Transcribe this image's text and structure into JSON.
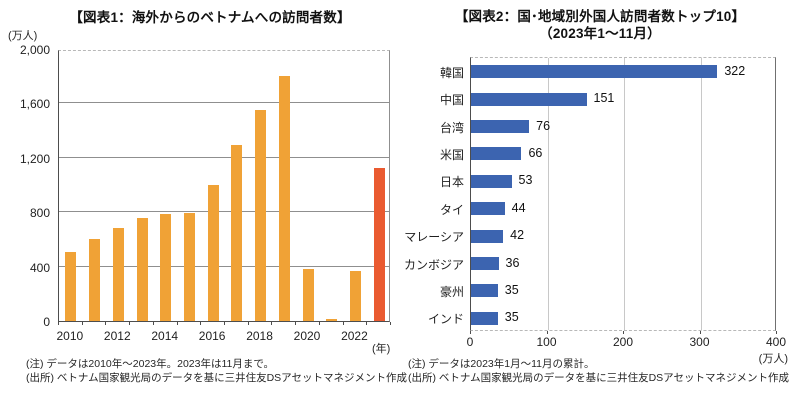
{
  "chart_data": [
    {
      "type": "bar",
      "title": "【図表1：海外からのベトナムへの訪問者数】",
      "ylabel": "(万人)",
      "xlabel": "(年)",
      "categories": [
        "2010",
        "2011",
        "2012",
        "2013",
        "2014",
        "2015",
        "2016",
        "2017",
        "2018",
        "2019",
        "2020",
        "2021",
        "2022",
        "2023"
      ],
      "values": [
        505,
        601,
        685,
        757,
        787,
        794,
        1001,
        1292,
        1550,
        1801,
        384,
        16,
        366,
        1123
      ],
      "ylim": [
        0,
        2000
      ],
      "yticks": [
        0,
        400,
        800,
        1200,
        1600,
        2000
      ],
      "xticks_shown": [
        "2010",
        "2012",
        "2014",
        "2016",
        "2018",
        "2020",
        "2022"
      ],
      "grid": "horizontal",
      "bar_color": "#f0a236",
      "highlight_index": 13,
      "highlight_color": "#ea5a30",
      "notes": [
        "(注) データは2010年～2023年。2023年は11月まで。",
        "(出所) ベトナム国家観光局のデータを基に三井住友DSアセットマネジメント作成"
      ]
    },
    {
      "type": "bar",
      "orientation": "horizontal",
      "title_line1": "【図表2：国･地域別外国人訪問者数トップ10】",
      "title_line2": "（2023年1～11月）",
      "xlabel": "(万人)",
      "categories": [
        "韓国",
        "中国",
        "台湾",
        "米国",
        "日本",
        "タイ",
        "マレーシア",
        "カンボジア",
        "豪州",
        "インド"
      ],
      "values": [
        322,
        151,
        76,
        66,
        53,
        44,
        42,
        36,
        35,
        35
      ],
      "xlim": [
        0,
        400
      ],
      "xticks": [
        0,
        100,
        200,
        300,
        400
      ],
      "grid": "vertical",
      "bar_color": "#3c64b0",
      "notes": [
        "(注) データは2023年1月～11月の累計。",
        "(出所) ベトナム国家観光局のデータを基に三井住友DSアセットマネジメント作成"
      ]
    }
  ]
}
